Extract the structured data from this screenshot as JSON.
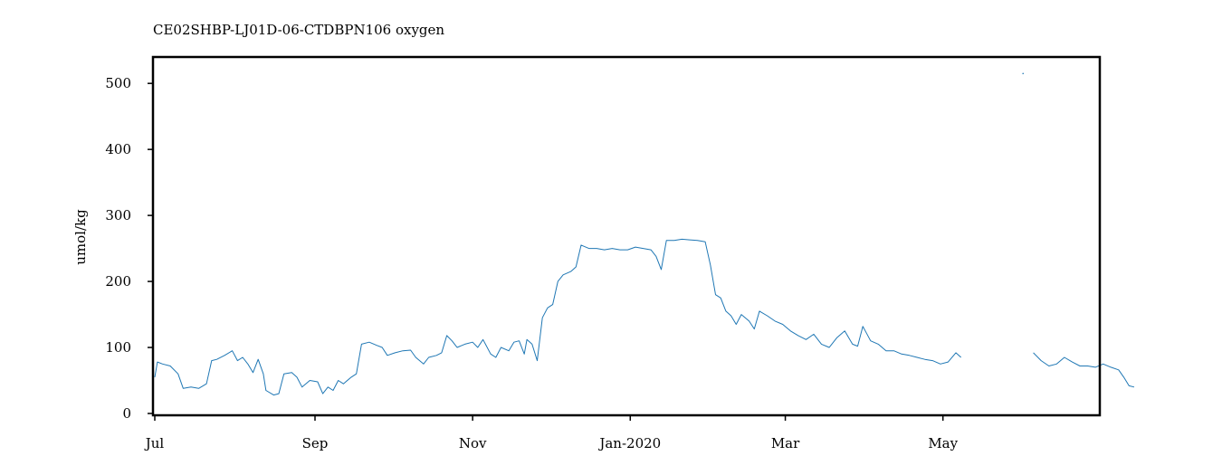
{
  "chart_data": {
    "type": "line",
    "title": "CE02SHBP-LJ01D-06-CTDBPN106 oxygen",
    "xlabel": "",
    "ylabel": "umol/kg",
    "x_axis_type": "date",
    "xlim": [
      "2019-07-01",
      "2020-06-30"
    ],
    "ylim": [
      0,
      540
    ],
    "grid": false,
    "legend": "none",
    "x_ticks": [
      {
        "date": "2019-07-01",
        "label": "Jul"
      },
      {
        "date": "2019-09-01",
        "label": "Sep"
      },
      {
        "date": "2019-11-01",
        "label": "Nov"
      },
      {
        "date": "2020-01-01",
        "label": "Jan-2020"
      },
      {
        "date": "2020-03-01",
        "label": "Mar"
      },
      {
        "date": "2020-05-01",
        "label": "May"
      }
    ],
    "y_ticks": [
      {
        "value": 0,
        "label": "0"
      },
      {
        "value": 100,
        "label": "100"
      },
      {
        "value": 200,
        "label": "200"
      },
      {
        "value": 300,
        "label": "300"
      },
      {
        "value": 400,
        "label": "400"
      },
      {
        "value": 500,
        "label": "500"
      }
    ],
    "series": [
      {
        "color": "#1f77b4",
        "segments": [
          [
            [
              "2019-07-01",
              55
            ],
            [
              "2019-07-02",
              78
            ],
            [
              "2019-07-04",
              75
            ],
            [
              "2019-07-07",
              72
            ],
            [
              "2019-07-10",
              60
            ],
            [
              "2019-07-12",
              38
            ],
            [
              "2019-07-15",
              40
            ],
            [
              "2019-07-18",
              38
            ],
            [
              "2019-07-21",
              45
            ],
            [
              "2019-07-23",
              80
            ],
            [
              "2019-07-25",
              82
            ],
            [
              "2019-07-28",
              88
            ],
            [
              "2019-07-31",
              95
            ],
            [
              "2019-08-02",
              80
            ],
            [
              "2019-08-04",
              85
            ],
            [
              "2019-08-06",
              75
            ],
            [
              "2019-08-08",
              62
            ],
            [
              "2019-08-10",
              82
            ],
            [
              "2019-08-12",
              60
            ],
            [
              "2019-08-13",
              35
            ],
            [
              "2019-08-16",
              28
            ],
            [
              "2019-08-18",
              30
            ],
            [
              "2019-08-20",
              60
            ],
            [
              "2019-08-23",
              62
            ],
            [
              "2019-08-25",
              55
            ],
            [
              "2019-08-27",
              40
            ],
            [
              "2019-08-30",
              50
            ],
            [
              "2019-09-02",
              48
            ],
            [
              "2019-09-04",
              30
            ],
            [
              "2019-09-06",
              40
            ],
            [
              "2019-09-08",
              35
            ],
            [
              "2019-09-10",
              50
            ],
            [
              "2019-09-12",
              45
            ],
            [
              "2019-09-15",
              55
            ],
            [
              "2019-09-17",
              60
            ],
            [
              "2019-09-19",
              105
            ],
            [
              "2019-09-22",
              108
            ],
            [
              "2019-09-25",
              103
            ],
            [
              "2019-09-27",
              100
            ],
            [
              "2019-09-29",
              88
            ],
            [
              "2019-10-02",
              92
            ],
            [
              "2019-10-05",
              95
            ],
            [
              "2019-10-08",
              96
            ],
            [
              "2019-10-10",
              85
            ],
            [
              "2019-10-13",
              75
            ],
            [
              "2019-10-15",
              85
            ],
            [
              "2019-10-18",
              88
            ],
            [
              "2019-10-20",
              92
            ],
            [
              "2019-10-22",
              118
            ],
            [
              "2019-10-24",
              110
            ],
            [
              "2019-10-26",
              100
            ],
            [
              "2019-10-29",
              105
            ],
            [
              "2019-11-01",
              108
            ],
            [
              "2019-11-03",
              100
            ],
            [
              "2019-11-05",
              112
            ],
            [
              "2019-11-08",
              90
            ],
            [
              "2019-11-10",
              85
            ],
            [
              "2019-11-12",
              100
            ],
            [
              "2019-11-15",
              95
            ],
            [
              "2019-11-17",
              108
            ],
            [
              "2019-11-19",
              110
            ],
            [
              "2019-11-21",
              90
            ],
            [
              "2019-11-22",
              112
            ],
            [
              "2019-11-24",
              105
            ],
            [
              "2019-11-26",
              80
            ],
            [
              "2019-11-28",
              145
            ],
            [
              "2019-11-30",
              160
            ],
            [
              "2019-12-02",
              165
            ],
            [
              "2019-12-04",
              200
            ],
            [
              "2019-12-06",
              210
            ],
            [
              "2019-12-09",
              215
            ],
            [
              "2019-12-11",
              222
            ],
            [
              "2019-12-13",
              255
            ],
            [
              "2019-12-16",
              250
            ],
            [
              "2019-12-19",
              250
            ],
            [
              "2019-12-22",
              248
            ],
            [
              "2019-12-25",
              250
            ],
            [
              "2019-12-28",
              248
            ],
            [
              "2019-12-31",
              248
            ],
            [
              "2020-01-03",
              252
            ],
            [
              "2020-01-06",
              250
            ],
            [
              "2020-01-09",
              248
            ],
            [
              "2020-01-11",
              238
            ],
            [
              "2020-01-13",
              218
            ],
            [
              "2020-01-15",
              262
            ],
            [
              "2020-01-18",
              262
            ],
            [
              "2020-01-21",
              264
            ],
            [
              "2020-01-24",
              263
            ],
            [
              "2020-01-27",
              262
            ],
            [
              "2020-01-30",
              260
            ],
            [
              "2020-02-01",
              225
            ],
            [
              "2020-02-03",
              180
            ],
            [
              "2020-02-05",
              175
            ],
            [
              "2020-02-07",
              155
            ],
            [
              "2020-02-09",
              148
            ],
            [
              "2020-02-11",
              135
            ],
            [
              "2020-02-13",
              150
            ],
            [
              "2020-02-16",
              140
            ],
            [
              "2020-02-18",
              128
            ],
            [
              "2020-02-20",
              155
            ],
            [
              "2020-02-23",
              148
            ],
            [
              "2020-02-26",
              140
            ],
            [
              "2020-02-29",
              135
            ],
            [
              "2020-03-03",
              125
            ],
            [
              "2020-03-06",
              118
            ],
            [
              "2020-03-09",
              112
            ],
            [
              "2020-03-12",
              120
            ],
            [
              "2020-03-15",
              105
            ],
            [
              "2020-03-18",
              100
            ],
            [
              "2020-03-21",
              115
            ],
            [
              "2020-03-24",
              125
            ],
            [
              "2020-03-27",
              105
            ],
            [
              "2020-03-29",
              102
            ],
            [
              "2020-03-31",
              132
            ],
            [
              "2020-04-03",
              110
            ],
            [
              "2020-04-06",
              105
            ],
            [
              "2020-04-09",
              95
            ],
            [
              "2020-04-12",
              95
            ],
            [
              "2020-04-15",
              90
            ],
            [
              "2020-04-18",
              88
            ],
            [
              "2020-04-21",
              85
            ],
            [
              "2020-04-24",
              82
            ],
            [
              "2020-04-27",
              80
            ],
            [
              "2020-04-30",
              75
            ],
            [
              "2020-05-03",
              78
            ],
            [
              "2020-05-06",
              92
            ],
            [
              "2020-05-08",
              85
            ]
          ],
          [
            [
              "2020-06-05",
              92
            ],
            [
              "2020-06-08",
              80
            ],
            [
              "2020-06-11",
              72
            ],
            [
              "2020-06-14",
              75
            ],
            [
              "2020-06-17",
              85
            ],
            [
              "2020-06-20",
              78
            ],
            [
              "2020-06-23",
              72
            ],
            [
              "2020-06-26",
              72
            ],
            [
              "2020-06-29",
              70
            ],
            [
              "2020-07-02",
              75
            ],
            [
              "2020-07-05",
              70
            ],
            [
              "2020-07-08",
              66
            ],
            [
              "2020-07-10",
              55
            ],
            [
              "2020-07-12",
              42
            ],
            [
              "2020-07-14",
              40
            ]
          ]
        ],
        "outliers": [
          [
            "2020-06-01",
            515
          ]
        ]
      }
    ]
  }
}
